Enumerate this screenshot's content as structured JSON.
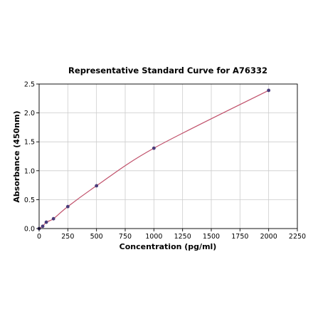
{
  "chart_data": {
    "type": "scatter",
    "title": "Representative Standard Curve for A76332",
    "xlabel": "Concentration (pg/ml)",
    "ylabel": "Absorbance (450nm)",
    "xlim": [
      0,
      2250
    ],
    "ylim": [
      0,
      2.5
    ],
    "xticks": [
      0,
      250,
      500,
      750,
      1000,
      1250,
      1500,
      1750,
      2000,
      2250
    ],
    "yticks": [
      0.0,
      0.5,
      1.0,
      1.5,
      2.0,
      2.5
    ],
    "xtick_labels": [
      "0",
      "250",
      "500",
      "750",
      "1000",
      "1250",
      "1500",
      "1750",
      "2000",
      "2250"
    ],
    "ytick_labels": [
      "0.0",
      "0.5",
      "1.0",
      "1.5",
      "2.0",
      "2.5"
    ],
    "grid": true,
    "points": [
      {
        "x": 0,
        "y": 0.0
      },
      {
        "x": 31.25,
        "y": 0.04
      },
      {
        "x": 62.5,
        "y": 0.11
      },
      {
        "x": 125,
        "y": 0.17
      },
      {
        "x": 250,
        "y": 0.38
      },
      {
        "x": 500,
        "y": 0.74
      },
      {
        "x": 1000,
        "y": 1.39
      },
      {
        "x": 2000,
        "y": 2.39
      }
    ],
    "colors": {
      "curve": "#c0506a",
      "points": "#4a3c7a",
      "grid": "#cccccc"
    }
  }
}
